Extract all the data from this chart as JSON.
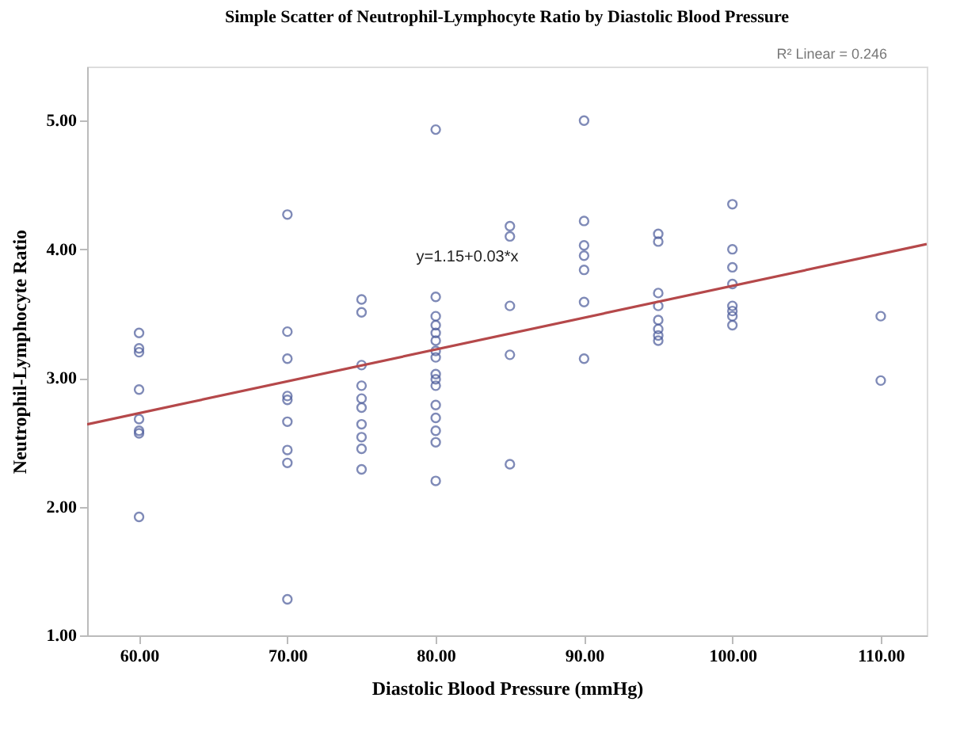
{
  "chart_data": {
    "type": "scatter",
    "title": "Simple Scatter of Neutrophil-Lymphocyte Ratio by Diastolic Blood Pressure",
    "xlabel": "Diastolic Blood Pressure (mmHg)",
    "ylabel": "Neutrophil-Lymphocyte Ratio",
    "xlim": [
      56.5,
      113.1
    ],
    "ylim": [
      1.0,
      5.42
    ],
    "xticks": [
      {
        "value": 60,
        "label": "60.00"
      },
      {
        "value": 70,
        "label": "70.00"
      },
      {
        "value": 80,
        "label": "80.00"
      },
      {
        "value": 90,
        "label": "90.00"
      },
      {
        "value": 100,
        "label": "100.00"
      },
      {
        "value": 110,
        "label": "110.00"
      }
    ],
    "yticks": [
      {
        "value": 1,
        "label": "1.00"
      },
      {
        "value": 2,
        "label": "2.00"
      },
      {
        "value": 3,
        "label": "3.00"
      },
      {
        "value": 4,
        "label": "4.00"
      },
      {
        "value": 5,
        "label": "5.00"
      }
    ],
    "grid": false,
    "series": [
      {
        "marker": "circle",
        "color": "#4a5a9a",
        "x": [
          60,
          60,
          60,
          60,
          60,
          60,
          60,
          60,
          70,
          70,
          70,
          70,
          70,
          70,
          70,
          70,
          70,
          75,
          75,
          75,
          75,
          75,
          75,
          75,
          75,
          75,
          75,
          80,
          80,
          80,
          80,
          80,
          80,
          80,
          80,
          80,
          80,
          80,
          80,
          80,
          80,
          80,
          80,
          85,
          85,
          85,
          85,
          85,
          90,
          90,
          90,
          90,
          90,
          90,
          90,
          95,
          95,
          95,
          95,
          95,
          95,
          95,
          95,
          100,
          100,
          100,
          100,
          100,
          100,
          100,
          100,
          110,
          110
        ],
        "values": [
          3.35,
          3.23,
          3.2,
          2.91,
          2.68,
          2.59,
          2.57,
          1.92,
          4.27,
          3.36,
          3.15,
          2.86,
          2.83,
          2.66,
          2.44,
          2.34,
          1.28,
          3.61,
          3.51,
          3.1,
          2.94,
          2.84,
          2.77,
          2.64,
          2.54,
          2.45,
          2.29,
          4.93,
          3.63,
          3.48,
          3.41,
          3.35,
          3.29,
          3.21,
          3.16,
          3.03,
          2.99,
          2.94,
          2.79,
          2.69,
          2.59,
          2.5,
          2.2,
          4.18,
          4.1,
          3.56,
          3.18,
          2.33,
          5.0,
          4.22,
          4.03,
          3.95,
          3.84,
          3.59,
          3.15,
          4.12,
          4.06,
          3.66,
          3.56,
          3.45,
          3.38,
          3.33,
          3.29,
          4.35,
          4.0,
          3.86,
          3.73,
          3.56,
          3.52,
          3.48,
          3.41,
          3.48,
          2.98
        ]
      },
      {
        "type": "line",
        "color": "#b5484a",
        "line_style": "solid",
        "x": [
          56.5,
          113.1
        ],
        "values": [
          2.64,
          4.04
        ]
      }
    ],
    "annotations": [
      "y=1.15+0.03*x",
      "R² Linear = 0.246"
    ]
  }
}
